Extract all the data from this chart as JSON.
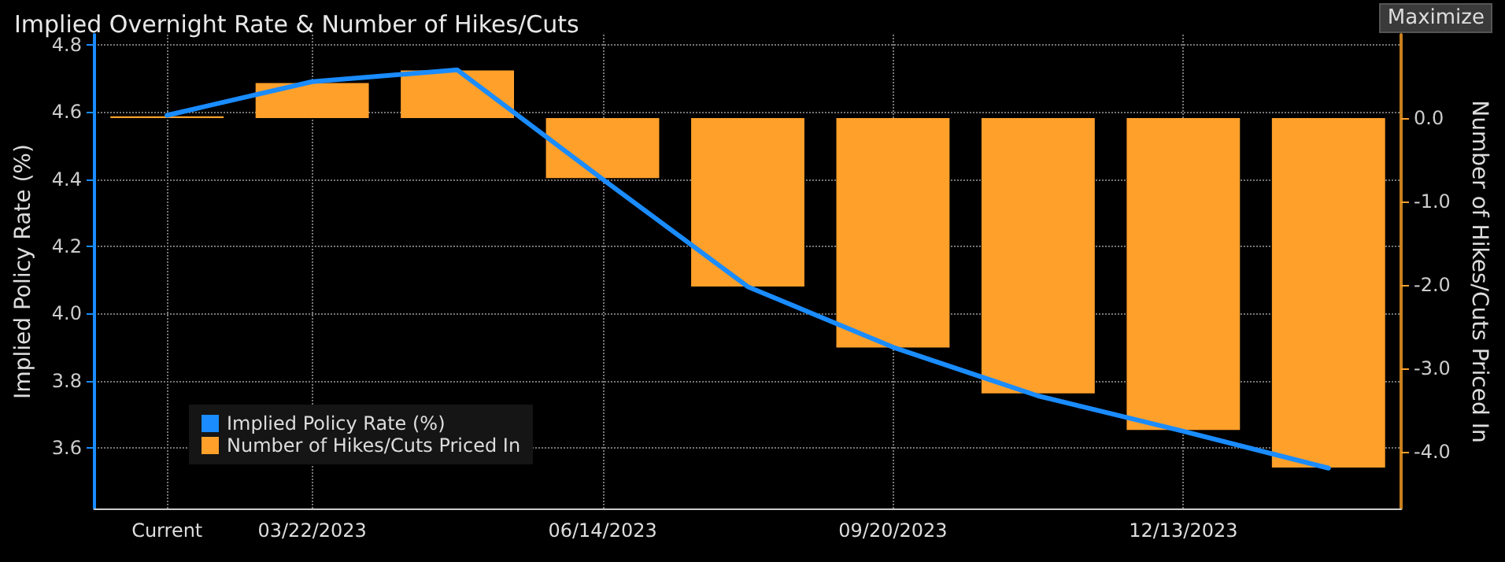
{
  "chart_data": {
    "type": "bar",
    "title": "Implied Overnight Rate & Number of Hikes/Cuts",
    "ylabel": "Implied Policy Rate (%)",
    "y2label": "Number of Hikes/Cuts Priced In",
    "annotations": [
      "Maximize"
    ],
    "categories": [
      "Current",
      "03/22/2023",
      null,
      "06/14/2023",
      null,
      "09/20/2023",
      null,
      "12/13/2023",
      null
    ],
    "series": [
      {
        "name": "Implied Policy Rate (%)",
        "type": "line",
        "color": "#1a8cff",
        "values": [
          4.59,
          4.69,
          4.725,
          4.4,
          4.08,
          3.9,
          3.755,
          3.65,
          3.54
        ]
      },
      {
        "name": "Number of Hikes/Cuts Priced In",
        "type": "bar",
        "axis": "y2",
        "color": "#ffa02a",
        "values": [
          0.02,
          0.42,
          0.57,
          -0.72,
          -2.02,
          -2.75,
          -3.3,
          -3.74,
          -4.19
        ]
      }
    ],
    "ylim": [
      3.42,
      4.83
    ],
    "yticks": [
      {
        "value": 3.6,
        "label": "3.6"
      },
      {
        "value": 3.8,
        "label": "3.8"
      },
      {
        "value": 4.0,
        "label": "4.0"
      },
      {
        "value": 4.2,
        "label": "4.2"
      },
      {
        "value": 4.4,
        "label": "4.4"
      },
      {
        "value": 4.6,
        "label": "4.6"
      },
      {
        "value": 4.8,
        "label": "4.8"
      }
    ],
    "y2lim": [
      -4.68,
      1.0
    ],
    "y2ticks": [
      {
        "value": -4,
        "label": "-4.0"
      },
      {
        "value": -3,
        "label": "-3.0"
      },
      {
        "value": -2,
        "label": "-2.0"
      },
      {
        "value": -1,
        "label": "-1.0"
      },
      {
        "value": 0,
        "label": "0.0"
      }
    ],
    "grid": true,
    "legend": "bottom left",
    "marker": "none",
    "line_style": "solid"
  }
}
